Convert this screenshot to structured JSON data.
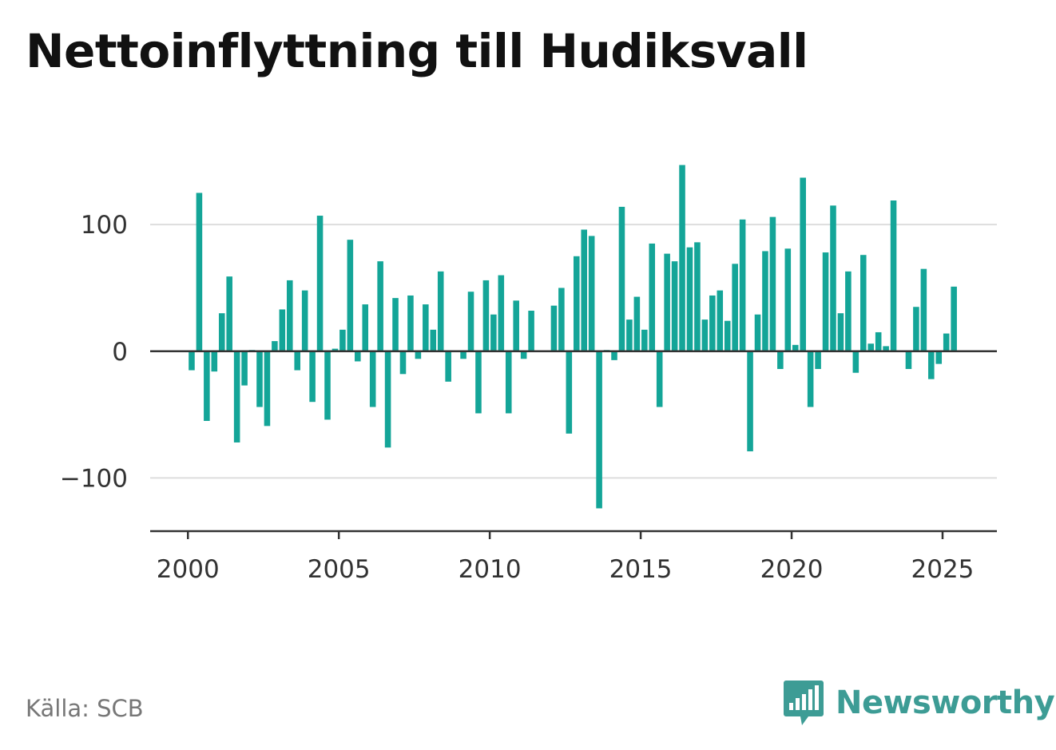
{
  "title": "Nettoinflyttning till Hudiksvall",
  "source": "Källa: SCB",
  "brand": {
    "name": "Newsworthy",
    "icon": "bar-chart-speech-bubble-icon",
    "color": "#3d9c95"
  },
  "colors": {
    "bar": "#14a598",
    "grid": "#dddddd",
    "zero_line": "#333333",
    "axis": "#333333"
  },
  "chart_data": {
    "type": "bar",
    "title": "Nettoinflyttning till Hudiksvall",
    "xlabel": "",
    "ylabel": "",
    "x_tick_labels": [
      "2000",
      "2005",
      "2010",
      "2015",
      "2020",
      "2025"
    ],
    "x_ticks": [
      2000,
      2005,
      2010,
      2015,
      2020,
      2025
    ],
    "y_tick_labels": [
      "100",
      "0",
      "−100"
    ],
    "y_ticks": [
      100,
      0,
      -100
    ],
    "xlim": [
      1998.75,
      2026.8
    ],
    "ylim": [
      -142,
      148
    ],
    "grid": true,
    "legend": "none",
    "frequency": "quarterly",
    "start": "2000 Q1",
    "end": "2025 Q2",
    "x": [
      "2000 Q1",
      "2000 Q2",
      "2000 Q3",
      "2000 Q4",
      "2001 Q1",
      "2001 Q2",
      "2001 Q3",
      "2001 Q4",
      "2002 Q1",
      "2002 Q2",
      "2002 Q3",
      "2002 Q4",
      "2003 Q1",
      "2003 Q2",
      "2003 Q3",
      "2003 Q4",
      "2004 Q1",
      "2004 Q2",
      "2004 Q3",
      "2004 Q4",
      "2005 Q1",
      "2005 Q2",
      "2005 Q3",
      "2005 Q4",
      "2006 Q1",
      "2006 Q2",
      "2006 Q3",
      "2006 Q4",
      "2007 Q1",
      "2007 Q2",
      "2007 Q3",
      "2007 Q4",
      "2008 Q1",
      "2008 Q2",
      "2008 Q3",
      "2008 Q4",
      "2009 Q1",
      "2009 Q2",
      "2009 Q3",
      "2009 Q4",
      "2010 Q1",
      "2010 Q2",
      "2010 Q3",
      "2010 Q4",
      "2011 Q1",
      "2011 Q2",
      "2011 Q3",
      "2011 Q4",
      "2012 Q1",
      "2012 Q2",
      "2012 Q3",
      "2012 Q4",
      "2013 Q1",
      "2013 Q2",
      "2013 Q3",
      "2013 Q4",
      "2014 Q1",
      "2014 Q2",
      "2014 Q3",
      "2014 Q4",
      "2015 Q1",
      "2015 Q2",
      "2015 Q3",
      "2015 Q4",
      "2016 Q1",
      "2016 Q2",
      "2016 Q3",
      "2016 Q4",
      "2017 Q1",
      "2017 Q2",
      "2017 Q3",
      "2017 Q4",
      "2018 Q1",
      "2018 Q2",
      "2018 Q3",
      "2018 Q4",
      "2019 Q1",
      "2019 Q2",
      "2019 Q3",
      "2019 Q4",
      "2020 Q1",
      "2020 Q2",
      "2020 Q3",
      "2020 Q4",
      "2021 Q1",
      "2021 Q2",
      "2021 Q3",
      "2021 Q4",
      "2022 Q1",
      "2022 Q2",
      "2022 Q3",
      "2022 Q4",
      "2023 Q1",
      "2023 Q2",
      "2023 Q3",
      "2023 Q4",
      "2024 Q1",
      "2024 Q2",
      "2024 Q3",
      "2024 Q4",
      "2025 Q1",
      "2025 Q2"
    ],
    "values": [
      -15,
      125,
      -55,
      -16,
      30,
      59,
      -72,
      -27,
      1,
      -44,
      -59,
      8,
      33,
      56,
      -15,
      48,
      -40,
      107,
      -54,
      2,
      17,
      88,
      -8,
      37,
      -44,
      71,
      -76,
      42,
      -18,
      44,
      -6,
      37,
      17,
      63,
      -24,
      0,
      -6,
      47,
      -49,
      56,
      29,
      60,
      -49,
      40,
      -6,
      32,
      0,
      0,
      36,
      50,
      -65,
      75,
      96,
      91,
      -124,
      1,
      -7,
      114,
      25,
      43,
      17,
      85,
      -44,
      77,
      71,
      147,
      82,
      86,
      25,
      44,
      48,
      24,
      69,
      104,
      -79,
      29,
      79,
      106,
      -14,
      81,
      5,
      137,
      -44,
      -14,
      78,
      115,
      30,
      63,
      -17,
      76,
      6,
      15,
      4,
      119,
      0,
      -14,
      35,
      65,
      -22,
      -10,
      14,
      51
    ]
  }
}
